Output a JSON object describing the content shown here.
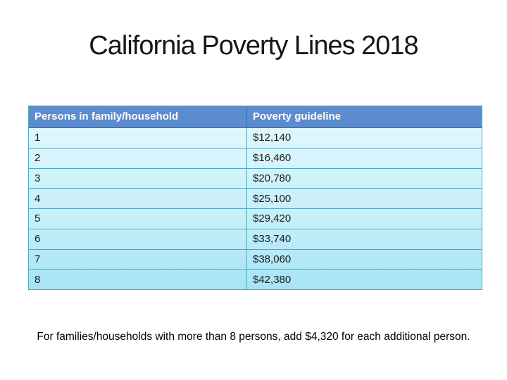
{
  "slide": {
    "title": "California Poverty Lines 2018",
    "footnote": "For families/households with more than 8 persons, add $4,320 for each additional person."
  },
  "table": {
    "columns": {
      "persons": "Persons in family/household",
      "guideline": "Poverty guideline"
    },
    "rows": [
      {
        "persons": "1",
        "guideline": "$12,140"
      },
      {
        "persons": "2",
        "guideline": "$16,460"
      },
      {
        "persons": "3",
        "guideline": "$20,780"
      },
      {
        "persons": "4",
        "guideline": "$25,100"
      },
      {
        "persons": "5",
        "guideline": "$29,420"
      },
      {
        "persons": "6",
        "guideline": "$33,740"
      },
      {
        "persons": "7",
        "guideline": "$38,060"
      },
      {
        "persons": "8",
        "guideline": "$42,380"
      }
    ]
  },
  "chart_data": {
    "type": "table",
    "title": "California Poverty Lines 2018",
    "columns": [
      "Persons in family/household",
      "Poverty guideline"
    ],
    "rows": [
      [
        "1",
        "$12,140"
      ],
      [
        "2",
        "$16,460"
      ],
      [
        "3",
        "$20,780"
      ],
      [
        "4",
        "$25,100"
      ],
      [
        "5",
        "$29,420"
      ],
      [
        "6",
        "$33,740"
      ],
      [
        "7",
        "$38,060"
      ],
      [
        "8",
        "$42,380"
      ]
    ],
    "note": "For families/households with more than 8 persons, add $4,320 for each additional person."
  },
  "colors": {
    "header_bg": "#5a8cce",
    "header_text": "#ffffff",
    "body_gradient_top": "#dff7fd",
    "body_gradient_bottom": "#a6e4f6",
    "grid_line": "#4fa6ba",
    "body_text": "#1a1a1a",
    "title_text": "#161616"
  }
}
